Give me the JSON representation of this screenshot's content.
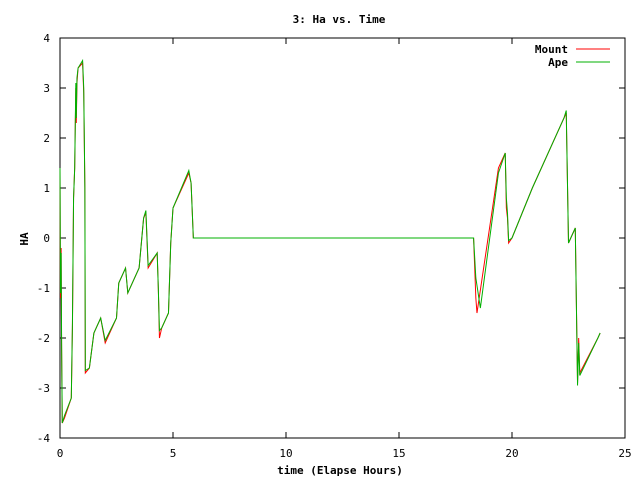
{
  "chart_data": {
    "type": "line",
    "title": "3: Ha vs. Time",
    "xlabel": "time (Elapse Hours)",
    "ylabel": "HA",
    "xlim": [
      0,
      25
    ],
    "ylim": [
      -4,
      4
    ],
    "x_ticks": [
      0,
      5,
      10,
      15,
      20,
      25
    ],
    "y_ticks": [
      -4,
      -3,
      -2,
      -1,
      0,
      1,
      2,
      3,
      4
    ],
    "grid": false,
    "legend_position": "top-right",
    "series": [
      {
        "name": "Mount",
        "color": "#ff0000",
        "points": [
          [
            0.0,
            1.4
          ],
          [
            0.02,
            -1.2
          ],
          [
            0.05,
            -0.2
          ],
          [
            0.07,
            -2.2
          ],
          [
            0.1,
            -3.7
          ],
          [
            0.2,
            -3.6
          ],
          [
            0.5,
            -3.2
          ],
          [
            0.55,
            -1.8
          ],
          [
            0.6,
            0.8
          ],
          [
            0.65,
            1.4
          ],
          [
            0.7,
            3.0
          ],
          [
            0.72,
            2.3
          ],
          [
            0.75,
            3.1
          ],
          [
            0.8,
            3.4
          ],
          [
            1.0,
            3.5
          ],
          [
            1.05,
            2.9
          ],
          [
            1.1,
            1.0
          ],
          [
            1.12,
            -2.7
          ],
          [
            1.3,
            -2.6
          ],
          [
            1.5,
            -1.9
          ],
          [
            1.8,
            -1.6
          ],
          [
            2.0,
            -2.1
          ],
          [
            2.5,
            -1.6
          ],
          [
            2.6,
            -0.9
          ],
          [
            2.9,
            -0.6
          ],
          [
            3.0,
            -1.1
          ],
          [
            3.5,
            -0.6
          ],
          [
            3.7,
            0.4
          ],
          [
            3.8,
            0.5
          ],
          [
            3.9,
            -0.6
          ],
          [
            4.3,
            -0.3
          ],
          [
            4.35,
            -1.0
          ],
          [
            4.4,
            -2.0
          ],
          [
            4.5,
            -1.8
          ],
          [
            4.8,
            -1.5
          ],
          [
            4.9,
            -0.1
          ],
          [
            5.0,
            0.6
          ],
          [
            5.7,
            1.3
          ],
          [
            5.8,
            1.1
          ],
          [
            5.9,
            0.0
          ],
          [
            18.3,
            0.0
          ],
          [
            18.4,
            -1.2
          ],
          [
            18.45,
            -1.5
          ],
          [
            19.4,
            1.4
          ],
          [
            19.7,
            1.7
          ],
          [
            19.75,
            0.6
          ],
          [
            19.8,
            0.4
          ],
          [
            19.85,
            -0.1
          ],
          [
            20.0,
            0.0
          ],
          [
            20.9,
            1.0
          ],
          [
            22.3,
            2.4
          ],
          [
            22.4,
            2.5
          ],
          [
            22.5,
            -0.1
          ],
          [
            22.8,
            0.2
          ],
          [
            22.9,
            -2.9
          ],
          [
            22.95,
            -2.0
          ],
          [
            23.0,
            -2.7
          ],
          [
            23.8,
            -2.0
          ],
          [
            23.9,
            -1.9
          ]
        ]
      },
      {
        "name": "Ape",
        "color": "#00b000",
        "points": [
          [
            0.0,
            1.4
          ],
          [
            0.02,
            -1.1
          ],
          [
            0.05,
            -0.3
          ],
          [
            0.07,
            -2.0
          ],
          [
            0.1,
            -3.7
          ],
          [
            0.2,
            -3.55
          ],
          [
            0.5,
            -3.2
          ],
          [
            0.55,
            -1.7
          ],
          [
            0.6,
            0.8
          ],
          [
            0.65,
            1.4
          ],
          [
            0.7,
            3.1
          ],
          [
            0.72,
            2.4
          ],
          [
            0.75,
            3.2
          ],
          [
            0.8,
            3.4
          ],
          [
            1.0,
            3.55
          ],
          [
            1.05,
            3.0
          ],
          [
            1.1,
            1.0
          ],
          [
            1.12,
            -2.65
          ],
          [
            1.3,
            -2.6
          ],
          [
            1.5,
            -1.9
          ],
          [
            1.8,
            -1.6
          ],
          [
            2.0,
            -2.05
          ],
          [
            2.5,
            -1.6
          ],
          [
            2.6,
            -0.9
          ],
          [
            2.9,
            -0.6
          ],
          [
            3.0,
            -1.1
          ],
          [
            3.5,
            -0.6
          ],
          [
            3.7,
            0.4
          ],
          [
            3.8,
            0.55
          ],
          [
            3.9,
            -0.55
          ],
          [
            4.3,
            -0.3
          ],
          [
            4.35,
            -1.0
          ],
          [
            4.4,
            -1.85
          ],
          [
            4.5,
            -1.8
          ],
          [
            4.8,
            -1.5
          ],
          [
            4.9,
            -0.1
          ],
          [
            5.0,
            0.6
          ],
          [
            5.7,
            1.35
          ],
          [
            5.8,
            1.1
          ],
          [
            5.9,
            0.0
          ],
          [
            18.3,
            0.0
          ],
          [
            18.4,
            -0.8
          ],
          [
            18.6,
            -1.4
          ],
          [
            19.4,
            1.3
          ],
          [
            19.7,
            1.7
          ],
          [
            19.75,
            0.8
          ],
          [
            19.8,
            0.5
          ],
          [
            19.85,
            -0.05
          ],
          [
            20.0,
            0.0
          ],
          [
            20.9,
            1.0
          ],
          [
            22.3,
            2.4
          ],
          [
            22.4,
            2.55
          ],
          [
            22.5,
            -0.1
          ],
          [
            22.8,
            0.2
          ],
          [
            22.9,
            -2.95
          ],
          [
            22.95,
            -2.1
          ],
          [
            23.0,
            -2.75
          ],
          [
            23.8,
            -2.0
          ],
          [
            23.9,
            -1.9
          ]
        ]
      }
    ]
  }
}
